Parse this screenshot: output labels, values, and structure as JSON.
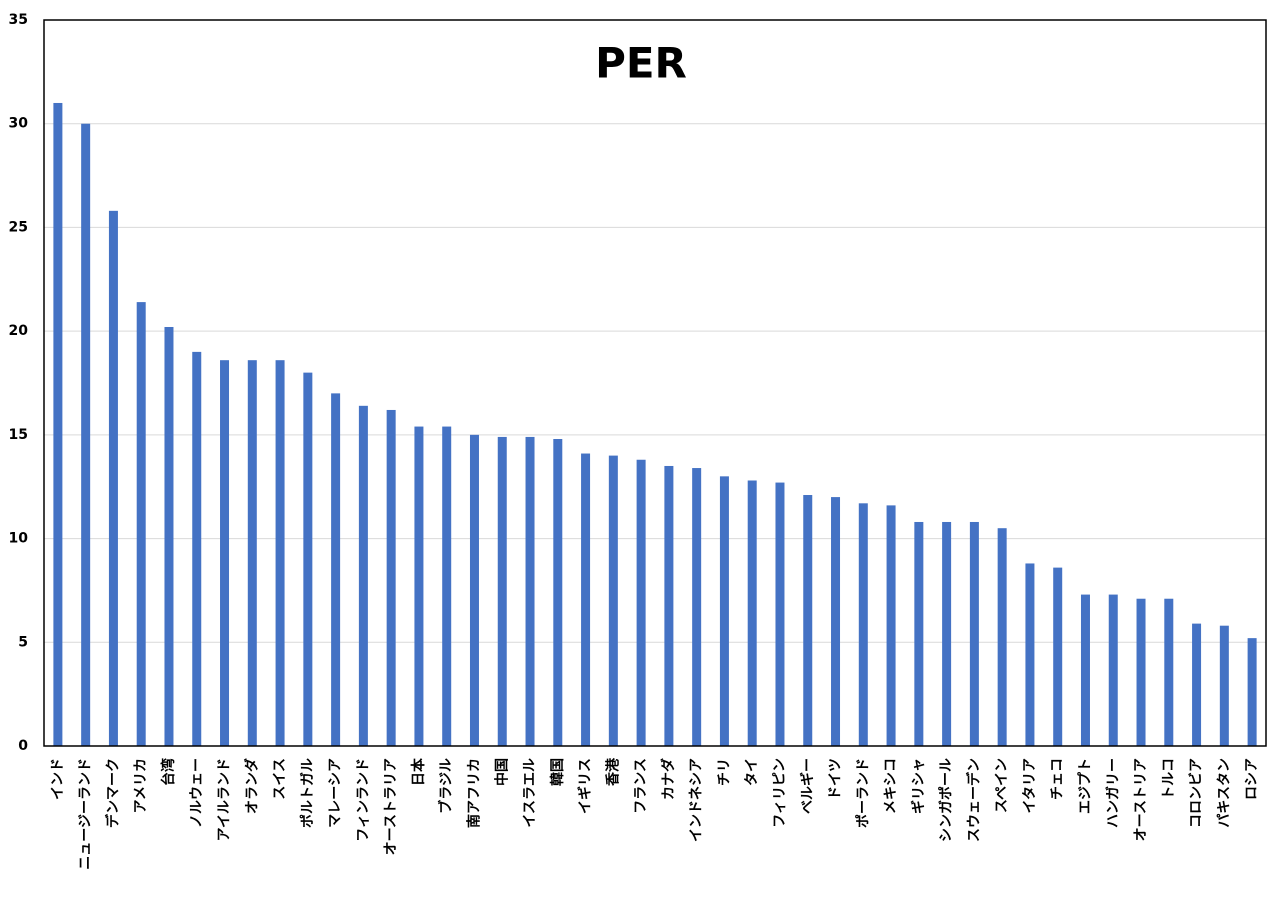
{
  "chart_data": {
    "type": "bar",
    "title": "PER",
    "categories": [
      "インド",
      "ニュージーランド",
      "デンマーク",
      "アメリカ",
      "台湾",
      "ノルウェー",
      "アイルランド",
      "オランダ",
      "スイス",
      "ポルトガル",
      "マレーシア",
      "フィンランド",
      "オーストラリア",
      "日本",
      "ブラジル",
      "南アフリカ",
      "中国",
      "イスラエル",
      "韓国",
      "イギリス",
      "香港",
      "フランス",
      "カナダ",
      "インドネシア",
      "チリ",
      "タイ",
      "フィリピン",
      "ベルギー",
      "ドイツ",
      "ポーランド",
      "メキシコ",
      "ギリシャ",
      "シンガポール",
      "スウェーデン",
      "スペイン",
      "イタリア",
      "チェコ",
      "エジプト",
      "ハンガリー",
      "オーストリア",
      "トルコ",
      "コロンビア",
      "パキスタン",
      "ロシア"
    ],
    "values": [
      31,
      30,
      25.8,
      21.4,
      20.2,
      19,
      18.6,
      18.6,
      18.6,
      18,
      17,
      16.4,
      16.2,
      15.4,
      15.4,
      15,
      14.9,
      14.9,
      14.8,
      14.1,
      14,
      13.8,
      13.5,
      13.4,
      13,
      12.8,
      12.7,
      12.1,
      12,
      11.7,
      11.6,
      10.8,
      10.8,
      10.8,
      10.5,
      8.8,
      8.6,
      7.3,
      7.3,
      7.1,
      7.1,
      5.9,
      5.8,
      5.2
    ],
    "color": "#4472c4",
    "ylim": [
      0,
      35
    ],
    "yticks": [
      0,
      5,
      10,
      15,
      20,
      25,
      30,
      35
    ],
    "grid": true
  }
}
